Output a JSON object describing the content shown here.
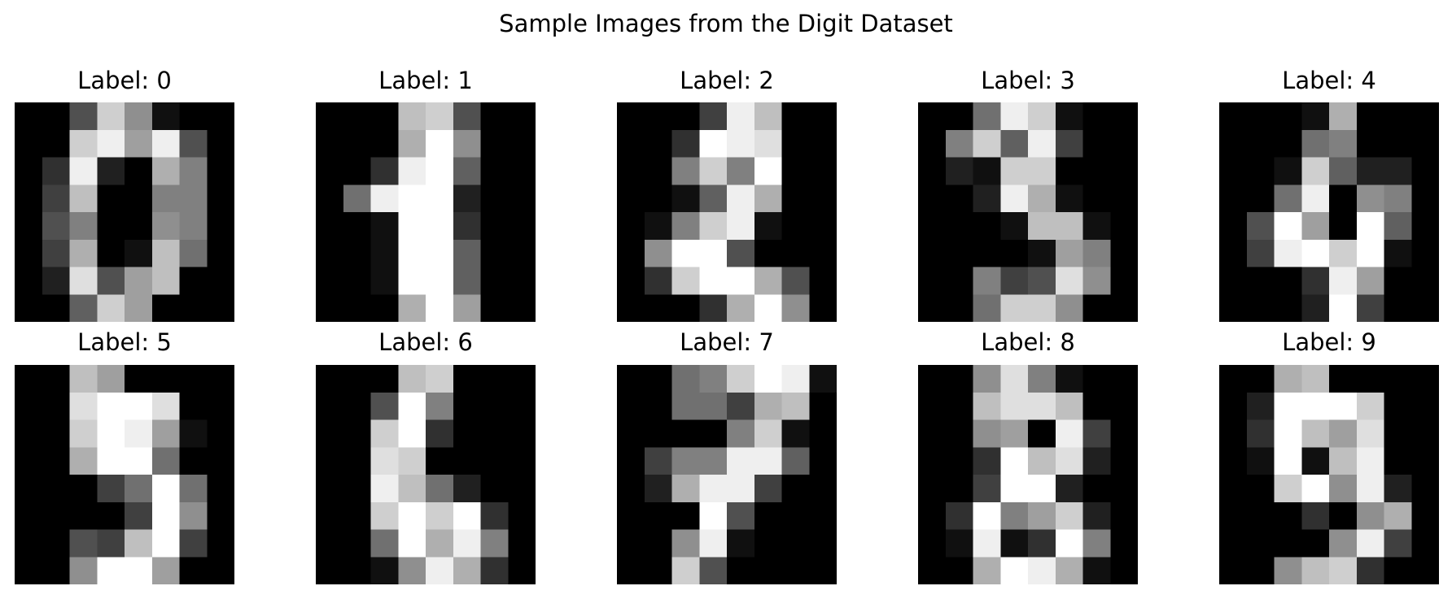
{
  "chart_data": {
    "type": "heatmap",
    "title": "Sample Images from the Digit Dataset",
    "colormap": "gray",
    "value_range": [
      0,
      16
    ],
    "grid": false,
    "axes": "off",
    "layout": {
      "rows": 2,
      "cols": 5
    },
    "panels": [
      {
        "title": "Label: 0",
        "label": 0,
        "pixels": [
          [
            0,
            0,
            5,
            13,
            9,
            1,
            0,
            0
          ],
          [
            0,
            0,
            13,
            15,
            10,
            15,
            5,
            0
          ],
          [
            0,
            3,
            15,
            2,
            0,
            11,
            8,
            0
          ],
          [
            0,
            4,
            12,
            0,
            0,
            8,
            8,
            0
          ],
          [
            0,
            5,
            8,
            0,
            0,
            9,
            8,
            0
          ],
          [
            0,
            4,
            11,
            0,
            1,
            12,
            7,
            0
          ],
          [
            0,
            2,
            14,
            5,
            10,
            12,
            0,
            0
          ],
          [
            0,
            0,
            6,
            13,
            10,
            0,
            0,
            0
          ]
        ]
      },
      {
        "title": "Label: 1",
        "label": 1,
        "pixels": [
          [
            0,
            0,
            0,
            12,
            13,
            5,
            0,
            0
          ],
          [
            0,
            0,
            0,
            11,
            16,
            9,
            0,
            0
          ],
          [
            0,
            0,
            3,
            15,
            16,
            6,
            0,
            0
          ],
          [
            0,
            7,
            15,
            16,
            16,
            2,
            0,
            0
          ],
          [
            0,
            0,
            1,
            16,
            16,
            3,
            0,
            0
          ],
          [
            0,
            0,
            1,
            16,
            16,
            6,
            0,
            0
          ],
          [
            0,
            0,
            1,
            16,
            16,
            6,
            0,
            0
          ],
          [
            0,
            0,
            0,
            11,
            16,
            10,
            0,
            0
          ]
        ]
      },
      {
        "title": "Label: 2",
        "label": 2,
        "pixels": [
          [
            0,
            0,
            0,
            4,
            15,
            12,
            0,
            0
          ],
          [
            0,
            0,
            3,
            16,
            15,
            14,
            0,
            0
          ],
          [
            0,
            0,
            8,
            13,
            8,
            16,
            0,
            0
          ],
          [
            0,
            0,
            1,
            6,
            15,
            11,
            0,
            0
          ],
          [
            0,
            1,
            8,
            13,
            15,
            1,
            0,
            0
          ],
          [
            0,
            9,
            16,
            16,
            5,
            0,
            0,
            0
          ],
          [
            0,
            3,
            13,
            16,
            16,
            11,
            5,
            0
          ],
          [
            0,
            0,
            0,
            3,
            11,
            16,
            9,
            0
          ]
        ]
      },
      {
        "title": "Label: 3",
        "label": 3,
        "pixels": [
          [
            0,
            0,
            7,
            15,
            13,
            1,
            0,
            0
          ],
          [
            0,
            8,
            13,
            6,
            15,
            4,
            0,
            0
          ],
          [
            0,
            2,
            1,
            13,
            13,
            0,
            0,
            0
          ],
          [
            0,
            0,
            2,
            15,
            11,
            1,
            0,
            0
          ],
          [
            0,
            0,
            0,
            1,
            12,
            12,
            1,
            0
          ],
          [
            0,
            0,
            0,
            0,
            1,
            10,
            8,
            0
          ],
          [
            0,
            0,
            8,
            4,
            5,
            14,
            9,
            0
          ],
          [
            0,
            0,
            7,
            13,
            13,
            9,
            0,
            0
          ]
        ]
      },
      {
        "title": "Label: 4",
        "label": 4,
        "pixels": [
          [
            0,
            0,
            0,
            1,
            11,
            0,
            0,
            0
          ],
          [
            0,
            0,
            0,
            7,
            8,
            0,
            0,
            0
          ],
          [
            0,
            0,
            1,
            13,
            6,
            2,
            2,
            0
          ],
          [
            0,
            0,
            7,
            15,
            0,
            9,
            8,
            0
          ],
          [
            0,
            5,
            16,
            10,
            0,
            16,
            6,
            0
          ],
          [
            0,
            4,
            15,
            16,
            13,
            16,
            1,
            0
          ],
          [
            0,
            0,
            0,
            3,
            15,
            10,
            0,
            0
          ],
          [
            0,
            0,
            0,
            2,
            16,
            4,
            0,
            0
          ]
        ]
      },
      {
        "title": "Label: 5",
        "label": 5,
        "pixels": [
          [
            0,
            0,
            12,
            10,
            0,
            0,
            0,
            0
          ],
          [
            0,
            0,
            14,
            16,
            16,
            14,
            0,
            0
          ],
          [
            0,
            0,
            13,
            16,
            15,
            10,
            1,
            0
          ],
          [
            0,
            0,
            11,
            16,
            16,
            7,
            0,
            0
          ],
          [
            0,
            0,
            0,
            4,
            7,
            16,
            7,
            0
          ],
          [
            0,
            0,
            0,
            0,
            4,
            16,
            9,
            0
          ],
          [
            0,
            0,
            5,
            4,
            12,
            16,
            4,
            0
          ],
          [
            0,
            0,
            9,
            16,
            16,
            10,
            0,
            0
          ]
        ]
      },
      {
        "title": "Label: 6",
        "label": 6,
        "pixels": [
          [
            0,
            0,
            0,
            12,
            13,
            0,
            0,
            0
          ],
          [
            0,
            0,
            5,
            16,
            8,
            0,
            0,
            0
          ],
          [
            0,
            0,
            13,
            16,
            3,
            0,
            0,
            0
          ],
          [
            0,
            0,
            14,
            13,
            0,
            0,
            0,
            0
          ],
          [
            0,
            0,
            15,
            12,
            7,
            2,
            0,
            0
          ],
          [
            0,
            0,
            13,
            16,
            13,
            16,
            3,
            0
          ],
          [
            0,
            0,
            7,
            16,
            11,
            15,
            8,
            0
          ],
          [
            0,
            0,
            1,
            9,
            15,
            11,
            3,
            0
          ]
        ]
      },
      {
        "title": "Label: 7",
        "label": 7,
        "pixels": [
          [
            0,
            0,
            7,
            8,
            13,
            16,
            15,
            1
          ],
          [
            0,
            0,
            7,
            7,
            4,
            11,
            12,
            0
          ],
          [
            0,
            0,
            0,
            0,
            8,
            13,
            1,
            0
          ],
          [
            0,
            4,
            8,
            8,
            15,
            15,
            6,
            0
          ],
          [
            0,
            2,
            11,
            15,
            15,
            4,
            0,
            0
          ],
          [
            0,
            0,
            0,
            16,
            5,
            0,
            0,
            0
          ],
          [
            0,
            0,
            9,
            15,
            1,
            0,
            0,
            0
          ],
          [
            0,
            0,
            13,
            5,
            0,
            0,
            0,
            0
          ]
        ]
      },
      {
        "title": "Label: 8",
        "label": 8,
        "pixels": [
          [
            0,
            0,
            9,
            14,
            8,
            1,
            0,
            0
          ],
          [
            0,
            0,
            12,
            14,
            14,
            12,
            0,
            0
          ],
          [
            0,
            0,
            9,
            10,
            0,
            15,
            4,
            0
          ],
          [
            0,
            0,
            3,
            16,
            12,
            14,
            2,
            0
          ],
          [
            0,
            0,
            4,
            16,
            16,
            2,
            0,
            0
          ],
          [
            0,
            3,
            16,
            8,
            10,
            13,
            2,
            0
          ],
          [
            0,
            1,
            15,
            1,
            3,
            16,
            8,
            0
          ],
          [
            0,
            0,
            11,
            16,
            15,
            11,
            1,
            0
          ]
        ]
      },
      {
        "title": "Label: 9",
        "label": 9,
        "pixels": [
          [
            0,
            0,
            11,
            12,
            0,
            0,
            0,
            0
          ],
          [
            0,
            2,
            16,
            16,
            16,
            13,
            0,
            0
          ],
          [
            0,
            3,
            16,
            12,
            10,
            14,
            0,
            0
          ],
          [
            0,
            1,
            16,
            1,
            12,
            15,
            0,
            0
          ],
          [
            0,
            0,
            13,
            16,
            9,
            15,
            2,
            0
          ],
          [
            0,
            0,
            0,
            3,
            0,
            9,
            11,
            0
          ],
          [
            0,
            0,
            0,
            0,
            9,
            15,
            4,
            0
          ],
          [
            0,
            0,
            9,
            12,
            13,
            3,
            0,
            0
          ]
        ]
      }
    ]
  }
}
